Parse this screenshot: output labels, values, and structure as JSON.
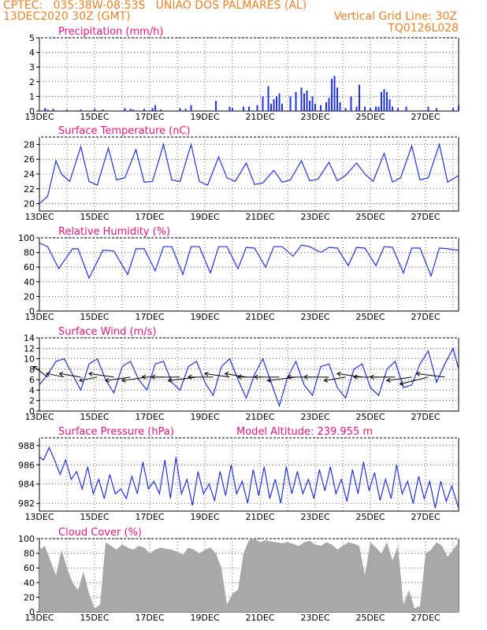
{
  "header": {
    "line1_left": "CPTEC:   035:38W-08:53S   UNIAO DOS PALMARES (AL)",
    "line2_left": "13DEC2020 30Z (GMT)",
    "line2_right": "Vertical Grid Line: 30Z",
    "line3_right": "TQ0126L028"
  },
  "colors": {
    "header": "#e8822a",
    "panel_title": "#e0187c",
    "series": "#2233dd",
    "cloud_fill": "#a8a8a8",
    "arrow": "#000000"
  },
  "chart_data": [
    {
      "type": "bar",
      "title": "Precipitation (mm/h)",
      "xlim": [
        0,
        15.2
      ],
      "ylim": [
        0,
        5
      ],
      "yticks": [
        0,
        1,
        2,
        3,
        4,
        5
      ],
      "xtick_labels": [
        "13DEC",
        "15DEC",
        "17DEC",
        "19DEC",
        "21DEC",
        "23DEC",
        "25DEC",
        "27DEC"
      ],
      "grid": true,
      "series": [
        {
          "day": [
            0.2,
            0.3,
            0.5,
            1.0,
            1.5,
            2.0,
            2.3,
            3.1,
            3.3,
            3.4,
            3.8,
            4.1,
            4.2,
            4.4,
            5.1,
            5.3,
            5.5,
            6.4,
            6.9,
            7.0,
            7.4,
            7.6,
            7.9,
            8.1,
            8.3,
            8.4,
            8.5,
            8.6,
            8.7,
            8.8,
            9.1,
            9.3,
            9.5,
            9.6,
            9.7,
            9.8,
            9.9,
            10.0,
            10.2,
            10.4,
            10.5,
            10.6,
            10.7,
            10.8,
            10.9,
            11.1,
            11.3,
            11.5,
            11.6,
            11.8,
            12.0,
            12.2,
            12.3,
            12.4,
            12.5,
            12.6,
            12.7,
            12.8,
            13.0,
            13.3,
            14.1,
            14.4,
            15.0,
            15.2
          ],
          "mm_per_h": [
            0.2,
            0.1,
            0.15,
            0.1,
            0.1,
            0.15,
            0.1,
            0.2,
            0.15,
            0.1,
            0.15,
            0.2,
            0.4,
            0.1,
            0.2,
            0.15,
            0.4,
            0.7,
            0.3,
            0.2,
            0.3,
            0.3,
            0.4,
            1.0,
            1.7,
            0.5,
            0.8,
            1.0,
            1.2,
            0.5,
            1.0,
            1.3,
            1.6,
            1.2,
            1.4,
            0.7,
            1.0,
            0.5,
            0.4,
            0.6,
            0.9,
            2.2,
            2.4,
            1.6,
            0.6,
            0.2,
            1.0,
            0.3,
            1.8,
            0.3,
            0.2,
            0.3,
            0.3,
            1.3,
            1.5,
            1.3,
            0.8,
            0.3,
            0.2,
            0.3,
            0.3,
            0.2,
            0.2,
            0.4
          ]
        }
      ]
    },
    {
      "type": "line",
      "title": "Surface Temperature (nC)",
      "xlim": [
        0,
        15.2
      ],
      "ylim": [
        19,
        29
      ],
      "yticks": [
        20,
        22,
        24,
        26,
        28
      ],
      "xtick_labels": [
        "13DEC",
        "15DEC",
        "17DEC",
        "19DEC",
        "21DEC",
        "23DEC",
        "25DEC",
        "27DEC"
      ],
      "grid": true,
      "series": [
        {
          "day": [
            0,
            0.3,
            0.6,
            0.8,
            1.1,
            1.5,
            1.8,
            2.1,
            2.5,
            2.8,
            3.1,
            3.5,
            3.8,
            4.1,
            4.5,
            4.8,
            5.1,
            5.5,
            5.8,
            6.1,
            6.5,
            6.8,
            7.1,
            7.5,
            7.8,
            8.1,
            8.5,
            8.8,
            9.1,
            9.5,
            9.8,
            10.1,
            10.5,
            10.8,
            11.1,
            11.5,
            11.8,
            12.1,
            12.5,
            12.8,
            13.1,
            13.5,
            13.8,
            14.1,
            14.5,
            14.8,
            15.2
          ],
          "temp_c": [
            20.0,
            21.0,
            25.8,
            24.0,
            23.0,
            27.7,
            23.0,
            22.5,
            27.5,
            23.2,
            23.5,
            27.3,
            22.9,
            23.0,
            28.0,
            23.2,
            23.0,
            28.0,
            23.0,
            22.5,
            26.3,
            23.5,
            23.0,
            25.5,
            22.6,
            22.8,
            24.5,
            22.9,
            23.2,
            25.8,
            23.1,
            23.3,
            25.6,
            23.1,
            23.8,
            25.5,
            24.0,
            23.0,
            26.8,
            22.9,
            23.5,
            27.8,
            23.2,
            23.5,
            28.0,
            22.9,
            23.8
          ]
        }
      ]
    },
    {
      "type": "line",
      "title": "Relative Humidity (%)",
      "xlim": [
        0,
        15.2
      ],
      "ylim": [
        0,
        100
      ],
      "yticks": [
        0,
        20,
        40,
        60,
        80,
        100
      ],
      "xtick_labels": [
        "13DEC",
        "15DEC",
        "17DEC",
        "19DEC",
        "21DEC",
        "23DEC",
        "25DEC",
        "27DEC"
      ],
      "grid": true,
      "series": [
        {
          "day": [
            0,
            0.3,
            0.7,
            1.2,
            1.4,
            1.8,
            2.3,
            2.7,
            3.2,
            3.5,
            3.8,
            4.2,
            4.5,
            4.8,
            5.2,
            5.5,
            5.8,
            6.2,
            6.5,
            6.8,
            7.2,
            7.5,
            7.8,
            8.2,
            8.5,
            8.8,
            9.2,
            9.5,
            9.8,
            10.2,
            10.5,
            10.8,
            11.2,
            11.5,
            11.8,
            12.2,
            12.5,
            12.8,
            13.2,
            13.5,
            13.8,
            14.2,
            14.5,
            14.8,
            15.2
          ],
          "rh_pct": [
            93,
            88,
            58,
            85,
            85,
            45,
            83,
            82,
            50,
            85,
            85,
            55,
            88,
            88,
            50,
            88,
            88,
            52,
            88,
            88,
            58,
            87,
            86,
            60,
            88,
            88,
            75,
            90,
            88,
            80,
            87,
            86,
            62,
            87,
            86,
            62,
            88,
            87,
            52,
            86,
            86,
            48,
            86,
            85,
            83
          ]
        }
      ]
    },
    {
      "type": "line",
      "title": "Surface Wind (m/s)",
      "xlim": [
        0,
        15.2
      ],
      "ylim": [
        0,
        14
      ],
      "yticks": [
        0,
        2,
        4,
        6,
        8,
        10,
        12,
        14
      ],
      "xtick_labels": [
        "13DEC",
        "15DEC",
        "17DEC",
        "19DEC",
        "21DEC",
        "23DEC",
        "25DEC",
        "27DEC"
      ],
      "grid": true,
      "series": [
        {
          "day": [
            0,
            0.3,
            0.6,
            0.9,
            1.2,
            1.5,
            1.8,
            2.1,
            2.4,
            2.7,
            3.0,
            3.3,
            3.6,
            3.9,
            4.2,
            4.5,
            4.8,
            5.1,
            5.4,
            5.7,
            6.0,
            6.3,
            6.6,
            6.9,
            7.2,
            7.5,
            7.8,
            8.1,
            8.4,
            8.7,
            9.0,
            9.3,
            9.6,
            9.9,
            10.2,
            10.5,
            10.8,
            11.1,
            11.4,
            11.7,
            12.0,
            12.3,
            12.6,
            12.9,
            13.2,
            13.5,
            13.8,
            14.1,
            14.4,
            14.7,
            15.0,
            15.2
          ],
          "speed_ms": [
            5.0,
            7.0,
            9.5,
            10.0,
            7.0,
            4.0,
            9.0,
            10.0,
            6.0,
            3.5,
            8.5,
            9.5,
            6.0,
            4.0,
            9.0,
            9.5,
            5.5,
            4.0,
            8.5,
            9.5,
            5.5,
            3.0,
            8.5,
            10.0,
            6.0,
            2.5,
            7.0,
            10.0,
            5.5,
            1.0,
            6.5,
            9.5,
            5.0,
            3.0,
            8.5,
            9.0,
            4.5,
            2.5,
            8.0,
            9.0,
            4.5,
            3.0,
            8.0,
            9.5,
            4.5,
            5.0,
            9.0,
            11.5,
            5.5,
            9.0,
            12.0,
            8.0
          ]
        }
      ],
      "wind_vectors": {
        "day": [
          0.3,
          0.9,
          1.5,
          2.1,
          2.7,
          3.3,
          3.9,
          4.5,
          5.1,
          5.7,
          6.3,
          6.9,
          7.5,
          8.1,
          8.7,
          9.3,
          9.9,
          10.5,
          11.1,
          11.7,
          12.3,
          12.9,
          13.5,
          14.1,
          14.7
        ],
        "u_ms": [
          -4,
          -5,
          -6,
          -5,
          -7,
          -7,
          -7,
          -6,
          -8,
          -8,
          -7,
          -7,
          -6,
          -7,
          -7,
          -8,
          -7,
          -7,
          -6,
          -7,
          -7,
          -7,
          -7,
          -8,
          -8
        ],
        "v_ms": [
          3,
          1,
          1,
          -1,
          1,
          -1,
          -1,
          0,
          0,
          -1,
          0,
          1,
          1,
          0,
          0,
          -1,
          0,
          0,
          -1,
          1,
          0,
          0,
          -1,
          -2,
          1
        ]
      }
    },
    {
      "type": "line",
      "title": "Surface Pressure (hPa)",
      "annotation": "Model Altitude: 239.955  m",
      "xlim": [
        0,
        15.2
      ],
      "ylim": [
        981.2,
        988.8
      ],
      "yticks": [
        982,
        984,
        986,
        988
      ],
      "xtick_labels": [
        "13DEC",
        "15DEC",
        "17DEC",
        "19DEC",
        "21DEC",
        "23DEC",
        "25DEC",
        "27DEC"
      ],
      "grid": true,
      "series": [
        {
          "day": [
            0,
            0.15,
            0.35,
            0.55,
            0.75,
            0.95,
            1.15,
            1.35,
            1.55,
            1.75,
            1.95,
            2.15,
            2.35,
            2.55,
            2.75,
            2.95,
            3.15,
            3.35,
            3.55,
            3.75,
            3.95,
            4.15,
            4.35,
            4.55,
            4.75,
            4.95,
            5.15,
            5.35,
            5.55,
            5.75,
            5.95,
            6.15,
            6.35,
            6.55,
            6.75,
            6.95,
            7.15,
            7.35,
            7.55,
            7.75,
            7.95,
            8.15,
            8.35,
            8.55,
            8.75,
            8.95,
            9.15,
            9.35,
            9.55,
            9.75,
            9.95,
            10.15,
            10.35,
            10.55,
            10.75,
            10.95,
            11.15,
            11.35,
            11.55,
            11.75,
            11.95,
            12.15,
            12.35,
            12.55,
            12.75,
            12.95,
            13.15,
            13.35,
            13.55,
            13.75,
            13.95,
            14.15,
            14.35,
            14.55,
            14.75,
            14.95,
            15.2
          ],
          "pressure_hpa": [
            986.8,
            986.5,
            987.8,
            986.5,
            985.0,
            986.5,
            984.5,
            985.3,
            983.5,
            985.8,
            983.0,
            984.5,
            982.5,
            985.0,
            983.0,
            983.5,
            982.5,
            984.8,
            983.0,
            986.3,
            983.5,
            984.3,
            983.0,
            986.5,
            982.5,
            986.8,
            983.0,
            984.5,
            981.8,
            985.3,
            983.0,
            984.0,
            982.3,
            985.3,
            982.8,
            986.0,
            983.0,
            984.3,
            982.0,
            985.5,
            982.8,
            985.8,
            982.5,
            984.5,
            982.0,
            985.8,
            983.0,
            985.3,
            983.0,
            984.5,
            982.5,
            985.5,
            983.3,
            985.8,
            983.0,
            984.5,
            982.2,
            985.5,
            983.0,
            986.3,
            983.3,
            985.2,
            982.3,
            984.5,
            982.5,
            986.0,
            983.0,
            984.3,
            982.0,
            984.8,
            982.5,
            984.3,
            981.5,
            984.3,
            982.2,
            983.8,
            981.5
          ]
        }
      ]
    },
    {
      "type": "area",
      "title": "Cloud Cover (%)",
      "xlim": [
        0,
        15.2
      ],
      "ylim": [
        0,
        100
      ],
      "yticks": [
        0,
        20,
        40,
        60,
        80,
        100
      ],
      "xtick_labels": [
        "13DEC",
        "15DEC",
        "17DEC",
        "19DEC",
        "21DEC",
        "23DEC",
        "25DEC",
        "27DEC"
      ],
      "grid": true,
      "series": [
        {
          "day": [
            0,
            0.2,
            0.4,
            0.6,
            0.8,
            1.0,
            1.2,
            1.4,
            1.6,
            1.8,
            2.0,
            2.2,
            2.4,
            2.6,
            2.8,
            3.0,
            3.2,
            3.4,
            3.6,
            3.8,
            4.0,
            4.2,
            4.4,
            4.6,
            4.8,
            5.0,
            5.2,
            5.4,
            5.6,
            5.8,
            6.0,
            6.2,
            6.4,
            6.6,
            6.8,
            7.0,
            7.2,
            7.4,
            7.6,
            7.8,
            8.0,
            8.2,
            8.4,
            8.6,
            8.8,
            9.0,
            9.2,
            9.4,
            9.6,
            9.8,
            10.0,
            10.2,
            10.4,
            10.6,
            10.8,
            11.0,
            11.2,
            11.4,
            11.6,
            11.8,
            12.0,
            12.2,
            12.4,
            12.6,
            12.8,
            13.0,
            13.2,
            13.4,
            13.6,
            13.8,
            14.0,
            14.2,
            14.4,
            14.6,
            14.8,
            15.0,
            15.2
          ],
          "cover_pct": [
            85,
            90,
            70,
            50,
            85,
            60,
            40,
            30,
            55,
            25,
            5,
            10,
            95,
            90,
            85,
            92,
            88,
            85,
            90,
            88,
            80,
            85,
            88,
            86,
            85,
            82,
            78,
            88,
            85,
            80,
            85,
            88,
            80,
            60,
            10,
            25,
            30,
            80,
            98,
            100,
            95,
            98,
            96,
            95,
            94,
            95,
            93,
            90,
            95,
            97,
            92,
            90,
            95,
            92,
            85,
            90,
            95,
            93,
            90,
            50,
            95,
            88,
            80,
            95,
            70,
            90,
            10,
            30,
            5,
            8,
            80,
            85,
            95,
            90,
            75,
            85,
            95
          ]
        }
      ]
    }
  ]
}
